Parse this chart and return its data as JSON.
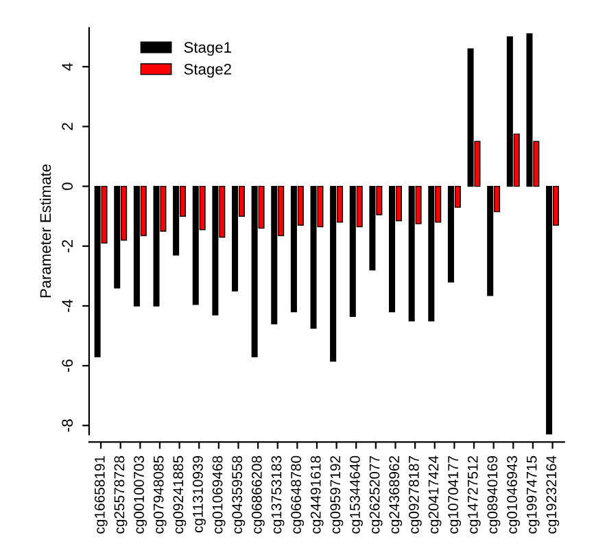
{
  "chart_data": {
    "type": "bar",
    "ylabel": "Parameter Estimate",
    "categories": [
      "cg16658191",
      "cg25578728",
      "cg00100703",
      "cg07948085",
      "cg09241885",
      "cg11310939",
      "cg01069468",
      "cg04359558",
      "cg06866208",
      "cg13753183",
      "cg06648780",
      "cg24491618",
      "cg09597192",
      "cg15344640",
      "cg26252077",
      "cg24368962",
      "cg09278187",
      "cg20417424",
      "cg10704177",
      "cg14727512",
      "cg08940169",
      "cg01046943",
      "cg19974715",
      "cg19232164"
    ],
    "series": [
      {
        "name": "Stage1",
        "color": "#000000",
        "values": [
          -5.7,
          -3.4,
          -4.0,
          -4.0,
          -2.3,
          -3.95,
          -4.3,
          -3.5,
          -5.7,
          -4.6,
          -4.2,
          -4.75,
          -5.85,
          -4.35,
          -2.8,
          -4.2,
          -4.5,
          -4.5,
          -3.2,
          4.6,
          -3.65,
          5.0,
          5.1,
          -8.3
        ]
      },
      {
        "name": "Stage2",
        "color": "#ff0000",
        "values": [
          -1.9,
          -1.8,
          -1.65,
          -1.5,
          -1.0,
          -1.45,
          -1.7,
          -1.0,
          -1.4,
          -1.65,
          -1.3,
          -1.35,
          -1.2,
          -1.35,
          -0.95,
          -1.15,
          -1.25,
          -1.2,
          -0.7,
          1.5,
          -0.85,
          1.75,
          1.5,
          -1.3
        ]
      }
    ],
    "ylim": [
      -8.3,
      5.3
    ],
    "yticks": [
      -8,
      -6,
      -4,
      -2,
      0,
      2,
      4
    ],
    "grid": false,
    "legend": "top left"
  }
}
